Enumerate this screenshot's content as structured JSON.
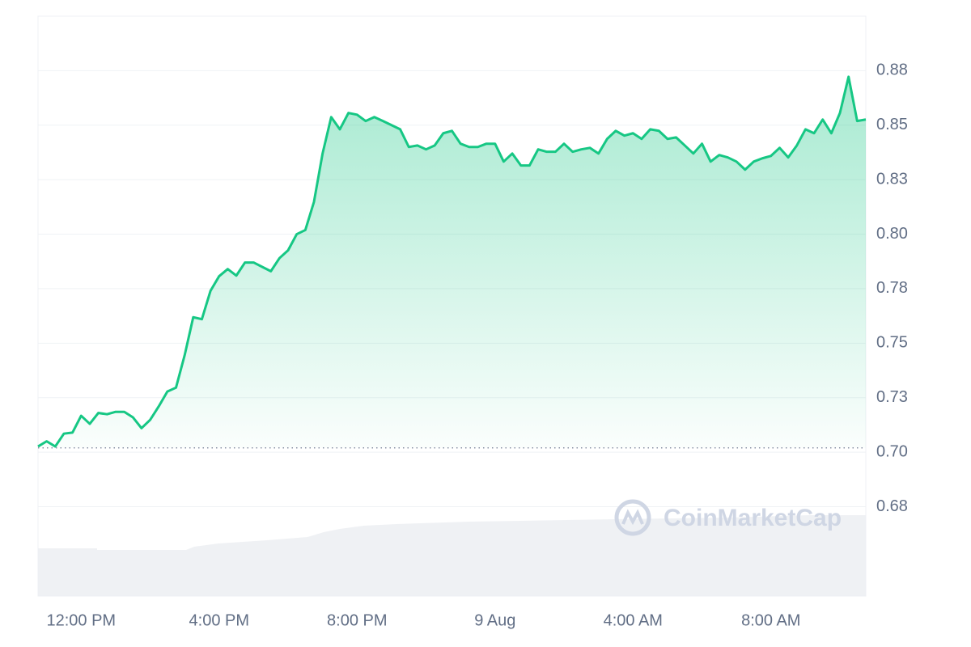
{
  "chart_data": {
    "type": "line",
    "categories": [
      null,
      null,
      null,
      null,
      null,
      "12:00 PM",
      null,
      null,
      null,
      null,
      null,
      null,
      null,
      null,
      null,
      null,
      null,
      null,
      null,
      null,
      null,
      "4:00 PM",
      null,
      null,
      null,
      null,
      null,
      null,
      null,
      null,
      null,
      null,
      null,
      null,
      null,
      null,
      null,
      "8:00 PM",
      null,
      null,
      null,
      null,
      null,
      null,
      null,
      null,
      null,
      null,
      null,
      null,
      null,
      null,
      null,
      "9 Aug",
      null,
      null,
      null,
      null,
      null,
      null,
      null,
      null,
      null,
      null,
      null,
      null,
      null,
      null,
      null,
      "4:00 AM",
      null,
      null,
      null,
      null,
      null,
      null,
      null,
      null,
      null,
      null,
      null,
      null,
      null,
      null,
      null,
      "8:00 AM",
      null,
      null,
      null,
      null,
      null,
      null,
      null,
      null,
      null,
      null,
      null
    ],
    "series": [
      {
        "color": "#16c784",
        "values": [
          0.7026,
          0.705,
          0.7026,
          0.7085,
          0.709,
          0.7167,
          0.713,
          0.718,
          0.7174,
          0.7185,
          0.7185,
          0.716,
          0.711,
          0.7148,
          0.721,
          0.7278,
          0.7296,
          0.7444,
          0.7619,
          0.761,
          0.774,
          0.7807,
          0.784,
          0.781,
          0.787,
          0.787,
          0.785,
          0.783,
          0.789,
          0.7926,
          0.8,
          0.8019,
          0.8148,
          0.837,
          0.8537,
          0.8481,
          0.8556,
          0.8548,
          0.8519,
          0.8537,
          0.8519,
          0.85,
          0.8481,
          0.84,
          0.8407,
          0.8389,
          0.8407,
          0.8463,
          0.8474,
          0.8415,
          0.84,
          0.84,
          0.8415,
          0.8415,
          0.8333,
          0.837,
          0.8315,
          0.8315,
          0.8389,
          0.8378,
          0.8378,
          0.8415,
          0.8378,
          0.8389,
          0.8396,
          0.837,
          0.8437,
          0.8474,
          0.8452,
          0.8463,
          0.8437,
          0.8481,
          0.8474,
          0.8437,
          0.8444,
          0.8407,
          0.837,
          0.8415,
          0.8333,
          0.8363,
          0.8352,
          0.8333,
          0.8296,
          0.8333,
          0.8348,
          0.8359,
          0.8396,
          0.8352,
          0.8407,
          0.8481,
          0.8463,
          0.8526,
          0.8463,
          0.8556,
          0.8722,
          0.8519,
          0.8526
        ]
      }
    ],
    "reference_line": 0.702,
    "ylim": [
      0.634,
      0.9
    ],
    "yticks": [
      {
        "value": 0.675,
        "label": "0.68"
      },
      {
        "value": 0.7,
        "label": "0.70"
      },
      {
        "value": 0.725,
        "label": "0.73"
      },
      {
        "value": 0.75,
        "label": "0.75"
      },
      {
        "value": 0.775,
        "label": "0.78"
      },
      {
        "value": 0.8,
        "label": "0.80"
      },
      {
        "value": 0.825,
        "label": "0.83"
      },
      {
        "value": 0.85,
        "label": "0.85"
      },
      {
        "value": 0.875,
        "label": "0.88"
      }
    ],
    "grid": true,
    "watermark": "CoinMarketCap"
  }
}
